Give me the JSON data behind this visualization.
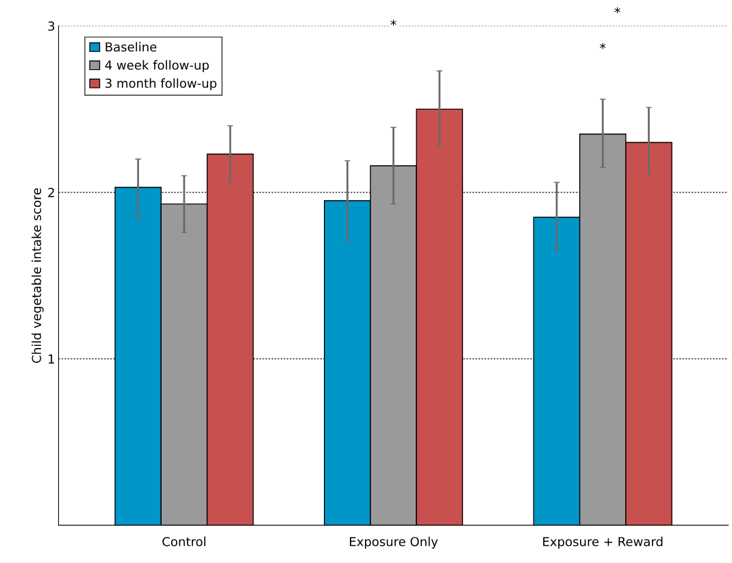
{
  "chart_data": {
    "type": "bar",
    "ylabel": "Child vegetable intake score",
    "categories": [
      "Control",
      "Exposure Only",
      "Exposure + Reward"
    ],
    "series": [
      {
        "name": "Baseline",
        "color": "#0096c8",
        "values": [
          2.03,
          1.95,
          1.85
        ],
        "errors": [
          [
            1.84,
            2.2
          ],
          [
            1.71,
            2.19
          ],
          [
            1.65,
            2.06
          ]
        ]
      },
      {
        "name": "4 week follow-up",
        "color": "#9a9a9a",
        "values": [
          1.93,
          2.16,
          2.35
        ],
        "errors": [
          [
            1.76,
            2.1
          ],
          [
            1.93,
            2.39
          ],
          [
            2.15,
            2.56
          ]
        ]
      },
      {
        "name": "3 month follow-up",
        "color": "#c8504f",
        "values": [
          2.23,
          2.5,
          2.3
        ],
        "errors": [
          [
            2.06,
            2.4
          ],
          [
            2.28,
            2.73
          ],
          [
            2.11,
            2.51
          ]
        ]
      }
    ],
    "ylim": [
      0,
      3
    ],
    "yticks": [
      1,
      2,
      3
    ],
    "grid": "y",
    "legend": "top left",
    "annotations": [
      {
        "text": "*",
        "x": "Exposure Only",
        "y": 3.0
      },
      {
        "text": "*",
        "x": "Exposure + Reward",
        "y": 2.86
      },
      "*"
    ]
  }
}
